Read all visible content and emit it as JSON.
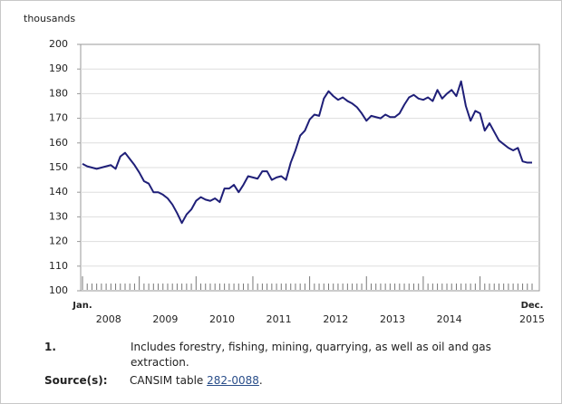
{
  "chart_data": {
    "type": "line",
    "y_label": "thousands",
    "categories": [
      "Jan.",
      null,
      null,
      null,
      null,
      null,
      null,
      null,
      null,
      null,
      null,
      null,
      null,
      null,
      null,
      null,
      null,
      null,
      null,
      null,
      null,
      null,
      null,
      null,
      null,
      null,
      null,
      null,
      null,
      null,
      null,
      null,
      null,
      null,
      null,
      null,
      null,
      null,
      null,
      null,
      null,
      null,
      null,
      null,
      null,
      null,
      null,
      null,
      null,
      null,
      null,
      null,
      null,
      null,
      null,
      null,
      null,
      null,
      null,
      null,
      null,
      null,
      null,
      null,
      null,
      null,
      null,
      null,
      null,
      null,
      null,
      null,
      null,
      null,
      null,
      null,
      null,
      null,
      null,
      null,
      null,
      null,
      null,
      null,
      null,
      null,
      null,
      null,
      null,
      null,
      null,
      null,
      null,
      null,
      null,
      "Dec."
    ],
    "year_labels": [
      "2008",
      "2009",
      "2010",
      "2011",
      "2012",
      "2013",
      "2014",
      "2015"
    ],
    "values": [
      151.5,
      150.5,
      150,
      149.5,
      150,
      150.5,
      151,
      149.5,
      154.5,
      156,
      153.5,
      151,
      148,
      144.5,
      143.5,
      140,
      140,
      139,
      137.5,
      135,
      131.5,
      127.5,
      131,
      133,
      136.5,
      138,
      137,
      136.5,
      137.5,
      136,
      141.5,
      141.5,
      143,
      140,
      143,
      146.5,
      146,
      145.5,
      148.5,
      148.5,
      145,
      146,
      146.5,
      145,
      152,
      157,
      163,
      165,
      169.5,
      171.5,
      171,
      178,
      181,
      179,
      177.5,
      178.5,
      177,
      176,
      174.5,
      172,
      169,
      171,
      170.5,
      170,
      171.5,
      170.5,
      170.5,
      172,
      175.5,
      178.5,
      179.5,
      178,
      177.5,
      178.5,
      177,
      181.5,
      178,
      180,
      181.5,
      179,
      185,
      175,
      169,
      173,
      172,
      165,
      168,
      164.5,
      161,
      159.5,
      158,
      157,
      158,
      152.5,
      152,
      152
    ],
    "color": "#1f1f78",
    "ylim": [
      100,
      200
    ],
    "yticks": [
      100,
      110,
      120,
      130,
      140,
      150,
      160,
      170,
      180,
      190,
      200
    ],
    "grid": true
  },
  "notes": {
    "marker": "1.",
    "text": "Includes forestry, fishing, mining, quarrying, as well as oil and gas extraction."
  },
  "source": {
    "label": "Source(s):",
    "text": "CANSIM table ",
    "link": "282-0088",
    "end": "."
  }
}
